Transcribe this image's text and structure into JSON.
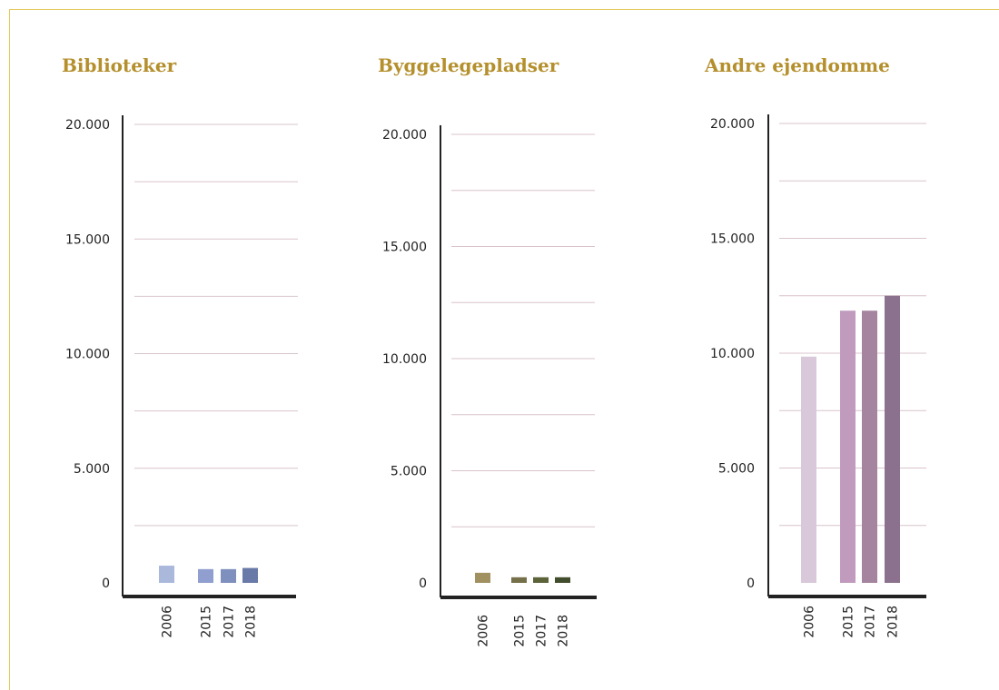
{
  "chart_data": [
    {
      "type": "bar",
      "title": "Biblioteker",
      "categories": [
        "2006",
        "2015",
        "2017",
        "2018"
      ],
      "values": [
        750,
        600,
        600,
        650
      ],
      "colors": [
        "#aab8dc",
        "#909fd0",
        "#7f90bf",
        "#6a7aa8"
      ],
      "ylim": [
        0,
        20000
      ],
      "yticks": [
        0,
        5000,
        10000,
        15000,
        20000
      ],
      "ytick_labels": [
        "0",
        "5.000",
        "10.000",
        "15.000",
        "20.000"
      ],
      "grid": true
    },
    {
      "type": "bar",
      "title": "Byggelegepladser",
      "categories": [
        "2006",
        "2015",
        "2017",
        "2018"
      ],
      "values": [
        450,
        250,
        250,
        250
      ],
      "colors": [
        "#a19060",
        "#75704a",
        "#5d6339",
        "#424d2d"
      ],
      "ylim": [
        0,
        20000
      ],
      "yticks": [
        0,
        5000,
        10000,
        15000,
        20000
      ],
      "ytick_labels": [
        "0",
        "5.000",
        "10.000",
        "15.000",
        "20.000"
      ],
      "grid": true
    },
    {
      "type": "bar",
      "title": "Andre ejendomme",
      "categories": [
        "2006",
        "2015",
        "2017",
        "2018"
      ],
      "values": [
        9850,
        11850,
        11850,
        12500
      ],
      "colors": [
        "#d8c8d9",
        "#c09bbe",
        "#a5849f",
        "#8b718d"
      ],
      "ylim": [
        0,
        20000
      ],
      "yticks": [
        0,
        5000,
        10000,
        15000,
        20000
      ],
      "ytick_labels": [
        "0",
        "5.000",
        "10.000",
        "15.000",
        "20.000"
      ],
      "grid": true
    }
  ]
}
